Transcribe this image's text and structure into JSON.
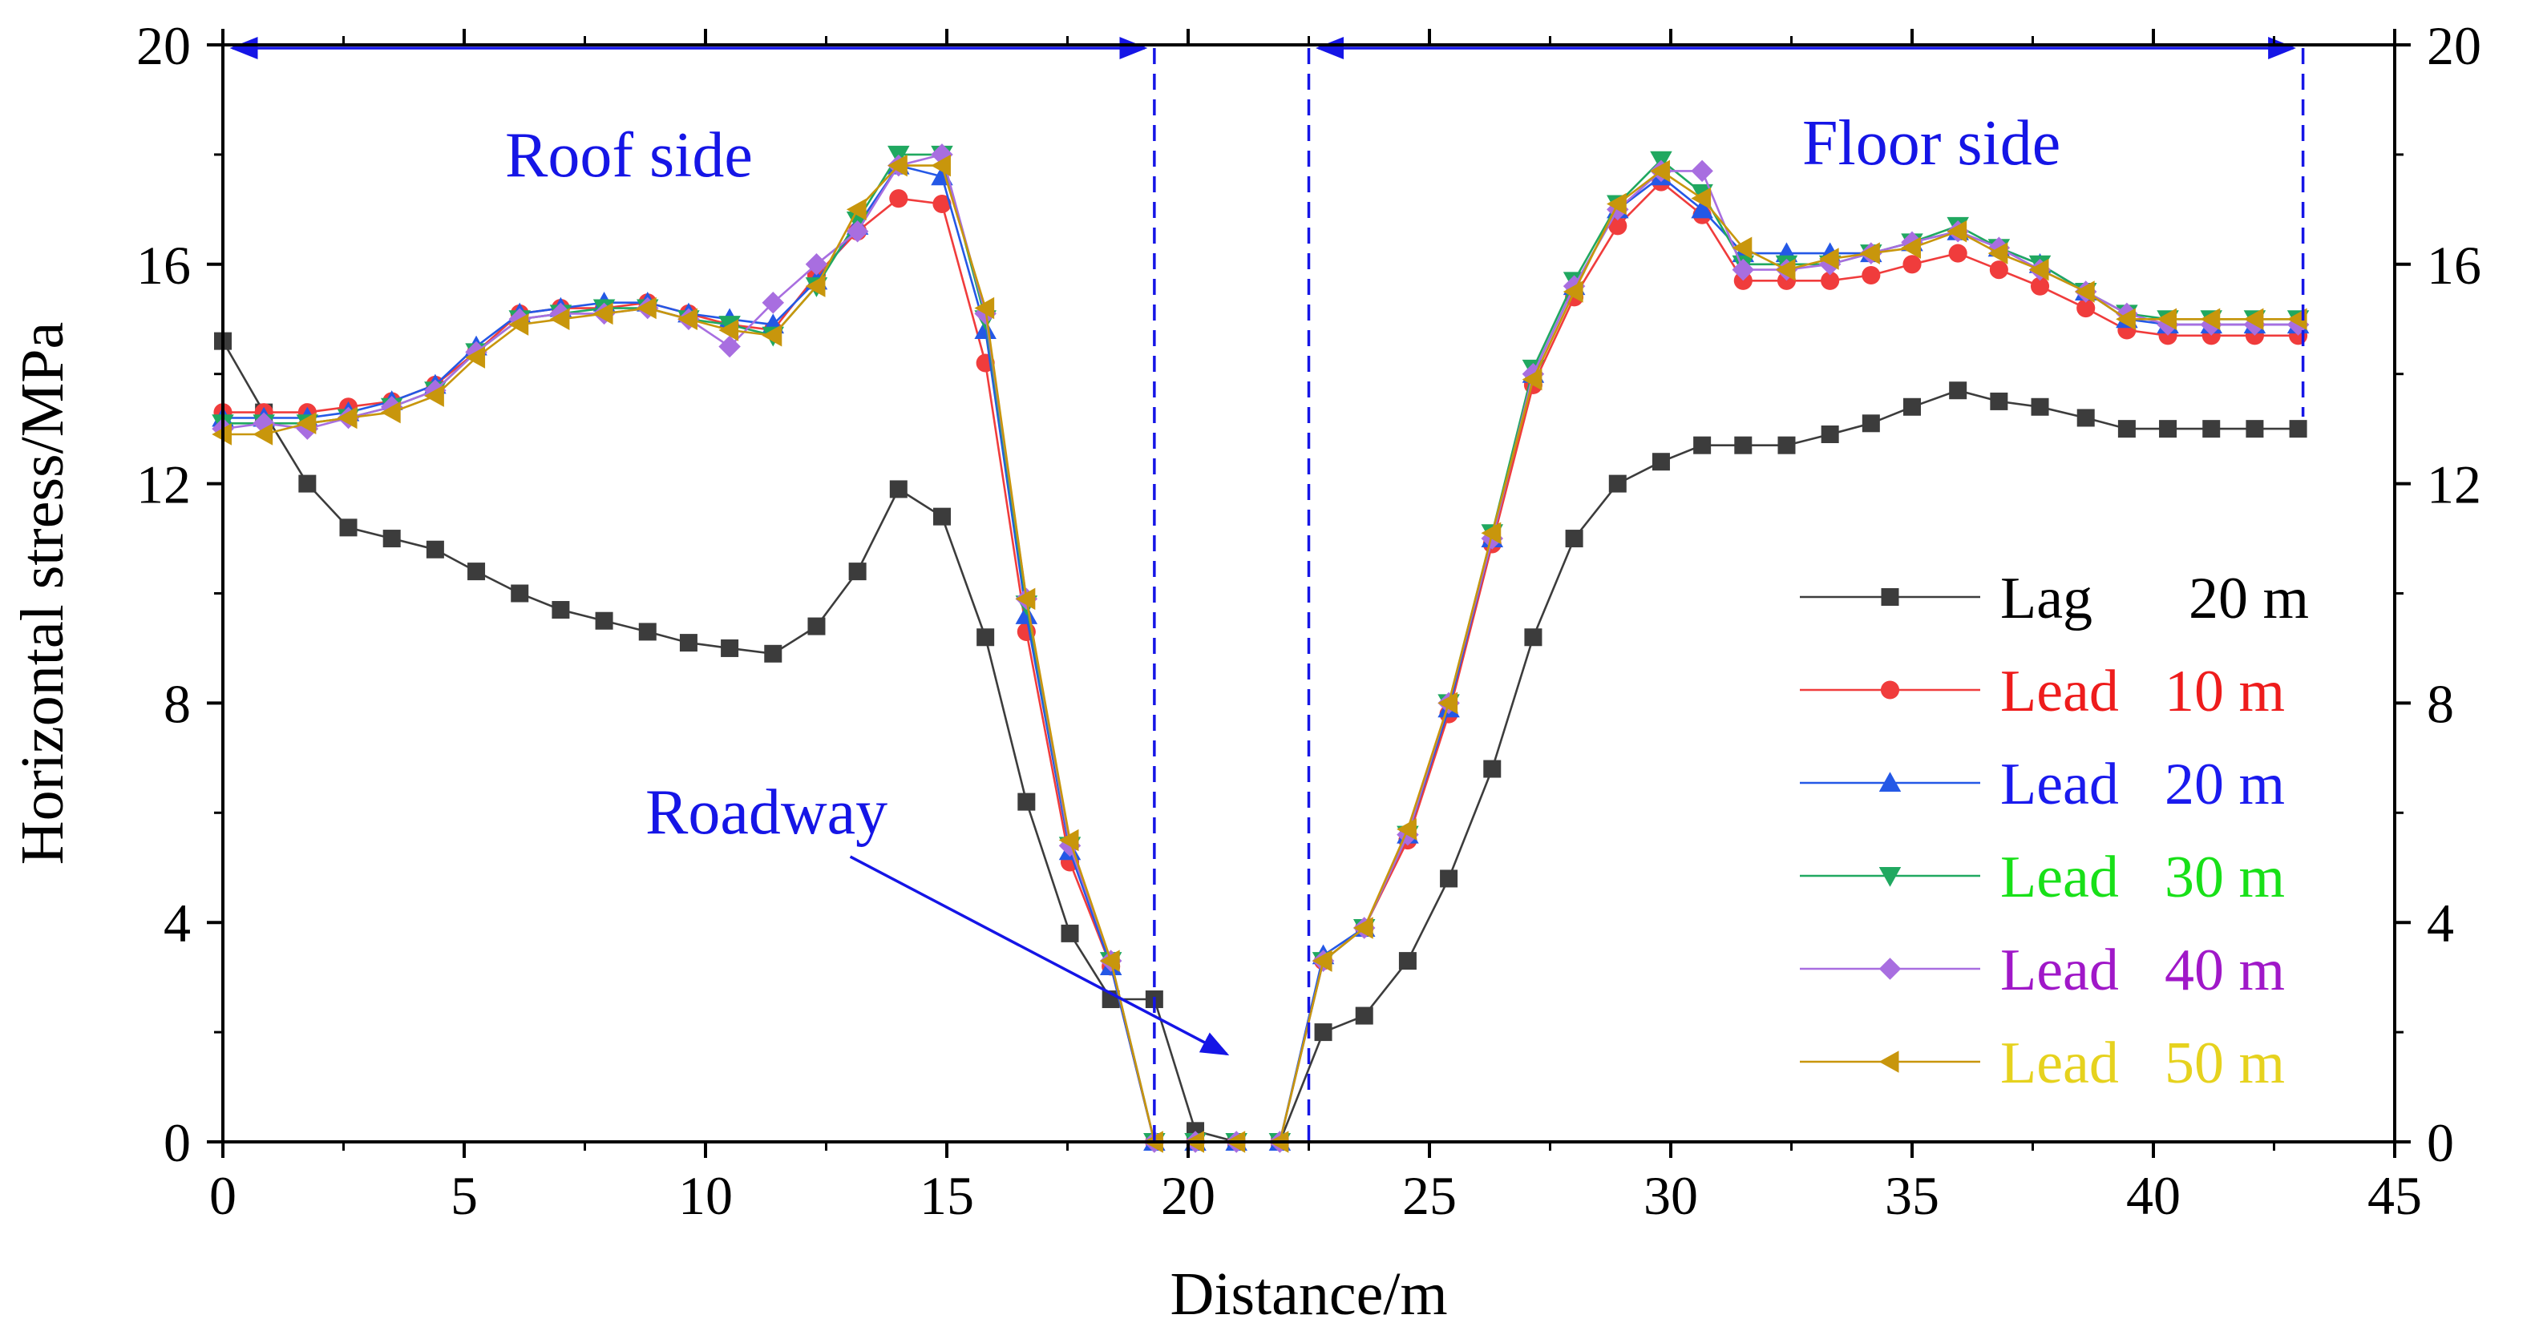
{
  "chart_data": {
    "type": "line",
    "xlabel": "Distance/m",
    "ylabel": "Horizontal stress/MPa",
    "xlim": [
      0,
      45
    ],
    "ylim": [
      0,
      20
    ],
    "x_ticks": [
      "0",
      "5",
      "10",
      "15",
      "20",
      "25",
      "30",
      "35",
      "40",
      "45"
    ],
    "x_tick_values": [
      0,
      5,
      10,
      15,
      20,
      25,
      30,
      35,
      40,
      45
    ],
    "y_ticks": [
      "0",
      "4",
      "8",
      "12",
      "16",
      "20"
    ],
    "y_tick_values": [
      0,
      4,
      8,
      12,
      16,
      20
    ],
    "grid": false,
    "legend_position": "right",
    "colors": {
      "axis": "#000000",
      "annotation": "#1515e6",
      "lag": "#3c3c3c",
      "lead10": "#f03c3c",
      "lead20": "#2458e6",
      "lead30": "#20a860",
      "lead40": "#a86ee0",
      "lead50": "#c8960c"
    },
    "annotations": {
      "roof": {
        "label": "Roof side",
        "x_start": 0,
        "x_end": 19.3,
        "y": 20
      },
      "floor": {
        "label": "Floor side",
        "x_start": 22.5,
        "x_end": 43.1,
        "y": 20
      },
      "roadway": {
        "label": "Roadway",
        "arrow_from": [
          13,
          5.2
        ],
        "arrow_to": [
          20.8,
          1.6
        ]
      }
    },
    "series": [
      {
        "name": "Lag",
        "legend_value": "20 m",
        "color": "#3c3c3c",
        "text_color": "#000000",
        "marker": "square",
        "x": [
          0,
          0.85,
          1.75,
          2.6,
          3.5,
          4.4,
          5.25,
          6.15,
          7.0,
          7.9,
          8.8,
          9.65,
          10.5,
          11.4,
          12.3,
          13.15,
          14.0,
          14.9,
          15.8,
          16.65,
          17.55,
          18.4,
          19.3,
          20.15,
          21.0,
          21.9,
          22.8,
          23.65,
          24.55,
          25.4,
          26.3,
          27.15,
          28.0,
          28.9,
          29.8,
          30.65,
          31.5,
          32.4,
          33.3,
          34.15,
          35.0,
          35.95,
          36.8,
          37.65,
          38.6,
          39.45,
          40.3,
          41.2,
          42.1,
          43.0
        ],
        "values": [
          14.6,
          13.3,
          12.0,
          11.2,
          11.0,
          10.8,
          10.4,
          10.0,
          9.7,
          9.5,
          9.3,
          9.1,
          9.0,
          8.9,
          9.4,
          10.4,
          11.9,
          11.4,
          9.2,
          6.2,
          3.8,
          2.6,
          2.6,
          0.2,
          0,
          0,
          2.0,
          2.3,
          3.3,
          4.8,
          6.8,
          9.2,
          11.0,
          12.0,
          12.4,
          12.7,
          12.7,
          12.7,
          12.9,
          13.1,
          13.4,
          13.7,
          13.5,
          13.4,
          13.2,
          13.0,
          13.0,
          13.0,
          13.0,
          13.0
        ]
      },
      {
        "name": "Lead",
        "legend_value": "10 m",
        "color": "#f03c3c",
        "text_color": "#ee1c1c",
        "marker": "circle",
        "x": [
          0,
          0.85,
          1.75,
          2.6,
          3.5,
          4.4,
          5.25,
          6.15,
          7.0,
          7.9,
          8.8,
          9.65,
          10.5,
          11.4,
          12.3,
          13.15,
          14.0,
          14.9,
          15.8,
          16.65,
          17.55,
          18.4,
          19.3,
          20.15,
          21.0,
          21.9,
          22.8,
          23.65,
          24.55,
          25.4,
          26.3,
          27.15,
          28.0,
          28.9,
          29.8,
          30.65,
          31.5,
          32.4,
          33.3,
          34.15,
          35.0,
          35.95,
          36.8,
          37.65,
          38.6,
          39.45,
          40.3,
          41.2,
          42.1,
          43.0
        ],
        "values": [
          13.3,
          13.3,
          13.3,
          13.4,
          13.5,
          13.8,
          14.4,
          15.1,
          15.2,
          15.2,
          15.3,
          15.1,
          14.9,
          14.8,
          15.8,
          16.6,
          17.2,
          17.1,
          14.2,
          9.3,
          5.1,
          3.2,
          0,
          0,
          0,
          0,
          3.3,
          3.9,
          5.5,
          7.8,
          10.9,
          13.8,
          15.4,
          16.7,
          17.5,
          16.9,
          15.7,
          15.7,
          15.7,
          15.8,
          16.0,
          16.2,
          15.9,
          15.6,
          15.2,
          14.8,
          14.7,
          14.7,
          14.7,
          14.7
        ]
      },
      {
        "name": "Lead",
        "legend_value": "20 m",
        "color": "#2458e6",
        "text_color": "#1a1aee",
        "marker": "triangle-up",
        "x": [
          0,
          0.85,
          1.75,
          2.6,
          3.5,
          4.4,
          5.25,
          6.15,
          7.0,
          7.9,
          8.8,
          9.65,
          10.5,
          11.4,
          12.3,
          13.15,
          14.0,
          14.9,
          15.8,
          16.65,
          17.55,
          18.4,
          19.3,
          20.15,
          21.0,
          21.9,
          22.8,
          23.65,
          24.55,
          25.4,
          26.3,
          27.15,
          28.0,
          28.9,
          29.8,
          30.65,
          31.5,
          32.4,
          33.3,
          34.15,
          35.0,
          35.95,
          36.8,
          37.65,
          38.6,
          39.45,
          40.3,
          41.2,
          42.1,
          43.0
        ],
        "values": [
          13.2,
          13.2,
          13.2,
          13.3,
          13.5,
          13.8,
          14.5,
          15.1,
          15.2,
          15.3,
          15.3,
          15.1,
          15.0,
          14.9,
          15.7,
          16.7,
          17.8,
          17.6,
          14.8,
          9.6,
          5.3,
          3.2,
          0,
          0,
          0,
          0,
          3.4,
          3.9,
          5.6,
          7.9,
          11.0,
          14.0,
          15.6,
          17.0,
          17.6,
          17.0,
          16.2,
          16.2,
          16.2,
          16.2,
          16.4,
          16.6,
          16.3,
          16.0,
          15.5,
          15.0,
          14.9,
          14.9,
          14.9,
          14.9
        ]
      },
      {
        "name": "Lead",
        "legend_value": "30 m",
        "color": "#20a860",
        "text_color": "#18e018",
        "marker": "triangle-down",
        "x": [
          0,
          0.85,
          1.75,
          2.6,
          3.5,
          4.4,
          5.25,
          6.15,
          7.0,
          7.9,
          8.8,
          9.65,
          10.5,
          11.4,
          12.3,
          13.15,
          14.0,
          14.9,
          15.8,
          16.65,
          17.55,
          18.4,
          19.3,
          20.15,
          21.0,
          21.9,
          22.8,
          23.65,
          24.55,
          25.4,
          26.3,
          27.15,
          28.0,
          28.9,
          29.8,
          30.65,
          31.5,
          32.4,
          33.3,
          34.15,
          35.0,
          35.95,
          36.8,
          37.65,
          38.6,
          39.45,
          40.3,
          41.2,
          42.1,
          43.0
        ],
        "values": [
          13.1,
          13.1,
          13.1,
          13.2,
          13.4,
          13.7,
          14.4,
          15.0,
          15.1,
          15.2,
          15.2,
          15.0,
          14.9,
          14.7,
          15.6,
          16.8,
          18.0,
          18.0,
          15.0,
          9.8,
          5.4,
          3.3,
          0,
          0,
          0,
          0,
          3.3,
          3.9,
          5.6,
          8.0,
          11.1,
          14.1,
          15.7,
          17.1,
          17.9,
          17.3,
          16.0,
          16.0,
          16.0,
          16.2,
          16.4,
          16.7,
          16.3,
          16.0,
          15.5,
          15.1,
          15.0,
          15.0,
          15.0,
          15.0
        ]
      },
      {
        "name": "Lead",
        "legend_value": "40 m",
        "color": "#a86ee0",
        "text_color": "#a018c8",
        "marker": "diamond",
        "x": [
          0,
          0.85,
          1.75,
          2.6,
          3.5,
          4.4,
          5.25,
          6.15,
          7.0,
          7.9,
          8.8,
          9.65,
          10.5,
          11.4,
          12.3,
          13.15,
          14.0,
          14.9,
          15.8,
          16.65,
          17.55,
          18.4,
          19.3,
          20.15,
          21.0,
          21.9,
          22.8,
          23.65,
          24.55,
          25.4,
          26.3,
          27.15,
          28.0,
          28.9,
          29.8,
          30.65,
          31.5,
          32.4,
          33.3,
          34.15,
          35.0,
          35.95,
          36.8,
          37.65,
          38.6,
          39.45,
          40.3,
          41.2,
          42.1,
          43.0
        ],
        "values": [
          13.0,
          13.1,
          13.0,
          13.2,
          13.4,
          13.7,
          14.4,
          15.0,
          15.1,
          15.1,
          15.2,
          15.0,
          14.5,
          15.3,
          16.0,
          16.6,
          17.8,
          18.0,
          15.1,
          9.9,
          5.4,
          3.3,
          0,
          0,
          0,
          0,
          3.3,
          3.9,
          5.6,
          8.0,
          11.0,
          14.0,
          15.6,
          17.0,
          17.7,
          17.7,
          15.9,
          15.9,
          16.0,
          16.2,
          16.4,
          16.6,
          16.3,
          15.9,
          15.5,
          15.1,
          14.9,
          14.9,
          14.9,
          14.9
        ]
      },
      {
        "name": "Lead",
        "legend_value": "50 m",
        "color": "#c8960c",
        "text_color": "#e6d21e",
        "marker": "triangle-left",
        "x": [
          0,
          0.85,
          1.75,
          2.6,
          3.5,
          4.4,
          5.25,
          6.15,
          7.0,
          7.9,
          8.8,
          9.65,
          10.5,
          11.4,
          12.3,
          13.15,
          14.0,
          14.9,
          15.8,
          16.65,
          17.55,
          18.4,
          19.3,
          20.15,
          21.0,
          21.9,
          22.8,
          23.65,
          24.55,
          25.4,
          26.3,
          27.15,
          28.0,
          28.9,
          29.8,
          30.65,
          31.5,
          32.4,
          33.3,
          34.15,
          35.0,
          35.95,
          36.8,
          37.65,
          38.6,
          39.45,
          40.3,
          41.2,
          42.1,
          43.0
        ],
        "values": [
          12.9,
          12.9,
          13.1,
          13.2,
          13.3,
          13.6,
          14.3,
          14.9,
          15.0,
          15.1,
          15.2,
          15.0,
          14.8,
          14.7,
          15.6,
          17.0,
          17.8,
          17.8,
          15.2,
          9.9,
          5.5,
          3.3,
          0,
          0,
          0,
          0,
          3.3,
          3.9,
          5.7,
          8.0,
          11.1,
          13.9,
          15.5,
          17.1,
          17.7,
          17.2,
          16.3,
          15.9,
          16.1,
          16.2,
          16.3,
          16.6,
          16.2,
          15.9,
          15.5,
          15.0,
          15.0,
          15.0,
          15.0,
          15.0
        ]
      }
    ]
  }
}
